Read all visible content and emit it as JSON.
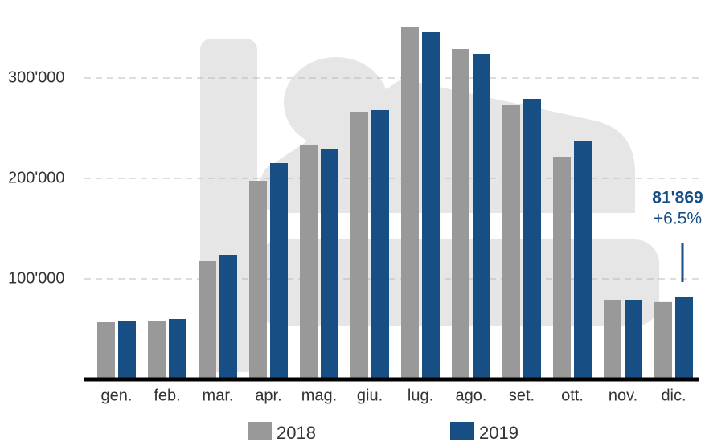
{
  "chart_data": {
    "type": "bar",
    "categories": [
      "gen.",
      "feb.",
      "mar.",
      "apr.",
      "mag.",
      "giu.",
      "lug.",
      "ago.",
      "set.",
      "ott.",
      "nov.",
      "dic."
    ],
    "series": [
      {
        "name": "2018",
        "color": "#999999",
        "values": [
          56800,
          58400,
          117600,
          197600,
          232800,
          266400,
          350400,
          328800,
          272800,
          221600,
          79200,
          76900
        ]
      },
      {
        "name": "2019",
        "color": "#174f85",
        "values": [
          58400,
          60000,
          124000,
          215200,
          229600,
          268000,
          345600,
          324000,
          279200,
          237600,
          79200,
          81869
        ],
        "value_labels": [
          null,
          null,
          null,
          null,
          null,
          null,
          null,
          null,
          null,
          null,
          null,
          "81'869"
        ]
      }
    ],
    "annotation": "+6.5%",
    "ylim": [
      0,
      375000
    ],
    "yticks": [
      {
        "value": 100000,
        "label": "100'000"
      },
      {
        "value": 200000,
        "label": "200'000"
      },
      {
        "value": 300000,
        "label": "300'000"
      }
    ],
    "grid": true,
    "legend": "bottom"
  }
}
